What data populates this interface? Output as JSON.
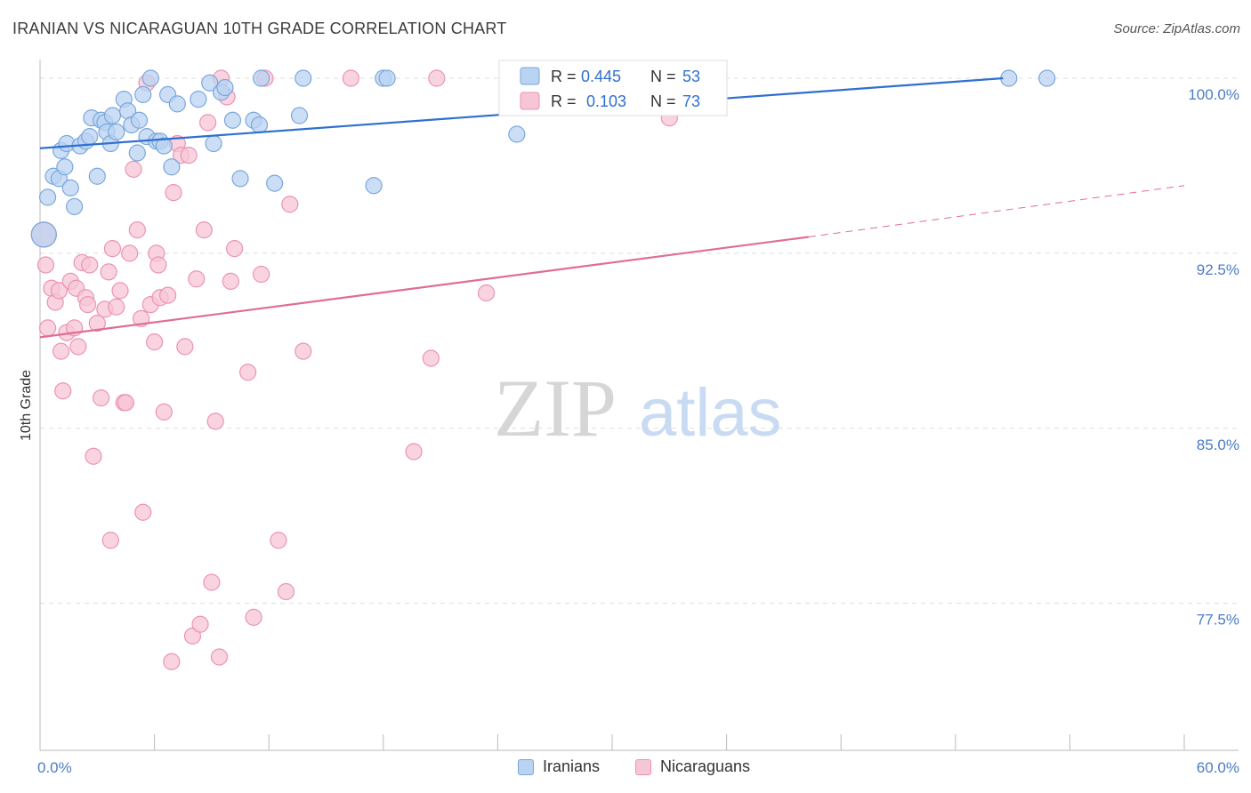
{
  "header": {
    "title": "IRANIAN VS NICARAGUAN 10TH GRADE CORRELATION CHART",
    "source": "Source: ZipAtlas.com"
  },
  "watermark": {
    "zip": "ZIP",
    "atlas": "atlas"
  },
  "colors": {
    "blue_fill": "#b9d3f2",
    "blue_stroke": "#7aa6dc",
    "blue_line": "#2f6fcf",
    "pink_fill": "#f7c6d6",
    "pink_stroke": "#ea93b2",
    "pink_line": "#e06c97",
    "tick_label": "#4a7cc7",
    "grid": "#dddddd"
  },
  "legend": {
    "rows": [
      {
        "r_label": "R =",
        "r_value": "0.445",
        "n_label": "N =",
        "n_value": "53"
      },
      {
        "r_label": "R =",
        "r_value": "0.103",
        "n_label": "N =",
        "n_value": "73"
      }
    ]
  },
  "bottom_legend": {
    "items": [
      "Iranians",
      "Nicaraguans"
    ]
  },
  "chart_data": {
    "type": "scatter",
    "title": "IRANIAN VS NICARAGUAN 10TH GRADE CORRELATION CHART",
    "ylabel": "10th Grade",
    "xlabel": "",
    "xlim": [
      0,
      60
    ],
    "ylim": [
      71.2,
      100.8
    ],
    "x_tick_labels": [
      "0.0%",
      "60.0%"
    ],
    "y_ticks": [
      77.5,
      85.0,
      92.5,
      100.0
    ],
    "y_tick_labels": [
      "77.5%",
      "85.0%",
      "92.5%",
      "100.0%"
    ],
    "grid": true,
    "legend_position": "top-center",
    "series": [
      {
        "name": "Iranians",
        "r": 0.445,
        "n": 53,
        "trend": {
          "x": [
            0,
            50.5
          ],
          "y": [
            97.0,
            100.0
          ],
          "dashed_to": null
        },
        "points": [
          [
            0.4,
            94.9
          ],
          [
            0.2,
            93.3
          ],
          [
            0.7,
            95.8
          ],
          [
            1.0,
            95.7
          ],
          [
            1.1,
            96.9
          ],
          [
            1.3,
            96.2
          ],
          [
            1.4,
            97.2
          ],
          [
            1.6,
            95.3
          ],
          [
            1.8,
            94.5
          ],
          [
            2.1,
            97.1
          ],
          [
            2.4,
            97.3
          ],
          [
            2.6,
            97.5
          ],
          [
            2.7,
            98.3
          ],
          [
            3.0,
            95.8
          ],
          [
            3.2,
            98.2
          ],
          [
            3.4,
            98.1
          ],
          [
            3.5,
            97.7
          ],
          [
            3.7,
            97.2
          ],
          [
            3.8,
            98.4
          ],
          [
            4.0,
            97.7
          ],
          [
            4.4,
            99.1
          ],
          [
            4.6,
            98.6
          ],
          [
            4.8,
            98.0
          ],
          [
            5.1,
            96.8
          ],
          [
            5.2,
            98.2
          ],
          [
            5.4,
            99.3
          ],
          [
            5.6,
            97.5
          ],
          [
            5.8,
            100.0
          ],
          [
            6.1,
            97.3
          ],
          [
            6.3,
            97.3
          ],
          [
            6.5,
            97.1
          ],
          [
            6.7,
            99.3
          ],
          [
            6.9,
            96.2
          ],
          [
            7.2,
            98.9
          ],
          [
            8.3,
            99.1
          ],
          [
            8.9,
            99.8
          ],
          [
            9.1,
            97.2
          ],
          [
            9.5,
            99.4
          ],
          [
            9.7,
            99.6
          ],
          [
            10.1,
            98.2
          ],
          [
            10.5,
            95.7
          ],
          [
            11.2,
            98.2
          ],
          [
            11.5,
            98.0
          ],
          [
            11.6,
            100.0
          ],
          [
            12.3,
            95.5
          ],
          [
            13.6,
            98.4
          ],
          [
            13.8,
            100.0
          ],
          [
            17.5,
            95.4
          ],
          [
            18.0,
            100.0
          ],
          [
            18.2,
            100.0
          ],
          [
            25.0,
            97.6
          ],
          [
            50.8,
            100.0
          ],
          [
            52.8,
            100.0
          ]
        ]
      },
      {
        "name": "Nicaraguans",
        "r": 0.103,
        "n": 73,
        "trend": {
          "x": [
            0,
            40.3
          ],
          "y": [
            88.9,
            93.2
          ],
          "dashed_to": [
            60,
            95.4
          ]
        },
        "points": [
          [
            0.2,
            93.3
          ],
          [
            0.3,
            92.0
          ],
          [
            0.4,
            89.3
          ],
          [
            0.6,
            91.0
          ],
          [
            0.8,
            90.4
          ],
          [
            1.0,
            90.9
          ],
          [
            1.1,
            88.3
          ],
          [
            1.2,
            86.6
          ],
          [
            1.4,
            89.1
          ],
          [
            1.6,
            91.3
          ],
          [
            1.8,
            89.3
          ],
          [
            1.9,
            91.0
          ],
          [
            2.0,
            88.5
          ],
          [
            2.2,
            92.1
          ],
          [
            2.4,
            90.6
          ],
          [
            2.5,
            90.3
          ],
          [
            2.6,
            92.0
          ],
          [
            2.8,
            83.8
          ],
          [
            3.0,
            89.5
          ],
          [
            3.2,
            86.3
          ],
          [
            3.4,
            90.1
          ],
          [
            3.6,
            91.7
          ],
          [
            3.7,
            80.2
          ],
          [
            3.8,
            92.7
          ],
          [
            4.0,
            90.2
          ],
          [
            4.2,
            90.9
          ],
          [
            4.4,
            86.1
          ],
          [
            4.5,
            86.1
          ],
          [
            4.7,
            92.5
          ],
          [
            4.9,
            96.1
          ],
          [
            5.1,
            93.5
          ],
          [
            5.3,
            89.7
          ],
          [
            5.4,
            81.4
          ],
          [
            5.6,
            99.8
          ],
          [
            5.8,
            90.3
          ],
          [
            6.0,
            88.7
          ],
          [
            6.1,
            92.5
          ],
          [
            6.2,
            92.0
          ],
          [
            6.3,
            90.6
          ],
          [
            6.5,
            85.7
          ],
          [
            6.7,
            90.7
          ],
          [
            6.9,
            75.0
          ],
          [
            7.0,
            95.1
          ],
          [
            7.2,
            97.2
          ],
          [
            7.4,
            96.7
          ],
          [
            7.6,
            88.5
          ],
          [
            7.8,
            96.7
          ],
          [
            8.0,
            76.1
          ],
          [
            8.2,
            91.4
          ],
          [
            8.4,
            76.6
          ],
          [
            8.6,
            93.5
          ],
          [
            8.8,
            98.1
          ],
          [
            9.0,
            78.4
          ],
          [
            9.2,
            85.3
          ],
          [
            9.4,
            75.2
          ],
          [
            9.5,
            100.0
          ],
          [
            9.8,
            99.2
          ],
          [
            10.0,
            91.3
          ],
          [
            10.2,
            92.7
          ],
          [
            10.9,
            87.4
          ],
          [
            11.2,
            76.9
          ],
          [
            11.6,
            91.6
          ],
          [
            11.8,
            100.0
          ],
          [
            12.5,
            80.2
          ],
          [
            12.9,
            78.0
          ],
          [
            13.1,
            94.6
          ],
          [
            13.8,
            88.3
          ],
          [
            16.3,
            100.0
          ],
          [
            19.6,
            84.0
          ],
          [
            20.5,
            88.0
          ],
          [
            20.8,
            100.0
          ],
          [
            23.4,
            90.8
          ],
          [
            33.0,
            98.3
          ]
        ]
      }
    ]
  }
}
